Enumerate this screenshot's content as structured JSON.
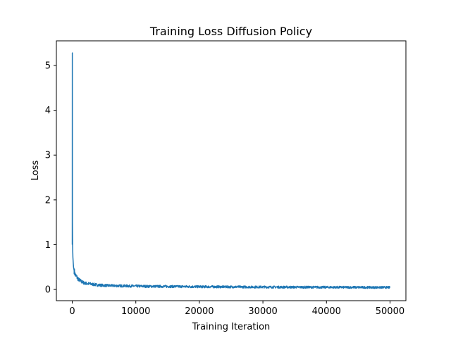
{
  "chart_data": {
    "type": "line",
    "title": "Training Loss Diffusion Policy",
    "xlabel": "Training Iteration",
    "ylabel": "Loss",
    "xlim": [
      -2500,
      52500
    ],
    "ylim": [
      -0.25,
      5.55
    ],
    "xticks": [
      0,
      10000,
      20000,
      30000,
      40000,
      50000
    ],
    "xtick_labels": [
      "0",
      "10000",
      "20000",
      "30000",
      "40000",
      "50000"
    ],
    "yticks": [
      0,
      1,
      2,
      3,
      4,
      5
    ],
    "ytick_labels": [
      "0",
      "1",
      "2",
      "3",
      "4",
      "5"
    ],
    "grid": false,
    "legend": "none",
    "series": [
      {
        "color": "#1f77b4",
        "points": [
          [
            0,
            1.0
          ],
          [
            10,
            5.28
          ],
          [
            25,
            1.5
          ],
          [
            50,
            1.0
          ],
          [
            100,
            0.72
          ],
          [
            150,
            0.6
          ],
          [
            200,
            0.5
          ],
          [
            300,
            0.42
          ],
          [
            400,
            0.36
          ],
          [
            500,
            0.32
          ],
          [
            700,
            0.28
          ],
          [
            1000,
            0.22
          ],
          [
            1500,
            0.17
          ],
          [
            2000,
            0.14
          ],
          [
            3000,
            0.12
          ],
          [
            4000,
            0.1
          ],
          [
            5000,
            0.09
          ],
          [
            6000,
            0.085
          ],
          [
            8000,
            0.08
          ],
          [
            10000,
            0.075
          ],
          [
            12000,
            0.07
          ],
          [
            15000,
            0.068
          ],
          [
            20000,
            0.062
          ],
          [
            25000,
            0.058
          ],
          [
            30000,
            0.055
          ],
          [
            35000,
            0.052
          ],
          [
            40000,
            0.05
          ],
          [
            45000,
            0.048
          ],
          [
            50000,
            0.046
          ]
        ]
      }
    ]
  }
}
